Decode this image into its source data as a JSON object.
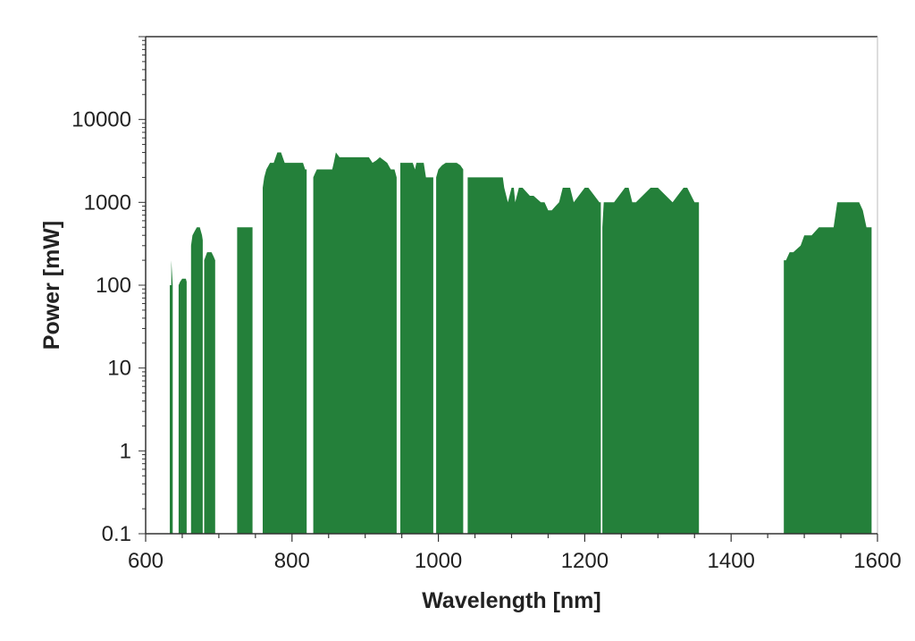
{
  "chart_data": {
    "type": "area",
    "title": "",
    "xlabel": "Wavelength [nm]",
    "ylabel": "Power [mW]",
    "xlim": [
      600,
      1600
    ],
    "ylim": [
      0.1,
      100000
    ],
    "yscale": "log",
    "grid": false,
    "legend": "none",
    "x_ticks": [
      600,
      800,
      1000,
      1200,
      1400,
      1600
    ],
    "x_tick_labels": [
      "600",
      "800",
      "1000",
      "1200",
      "1400",
      "1600"
    ],
    "y_ticks": [
      0.1,
      1,
      10,
      100,
      1000,
      10000
    ],
    "y_tick_labels": [
      "0.1",
      "1",
      "10",
      "100",
      "1000",
      "10000"
    ],
    "color": "#24803a",
    "series": [
      {
        "bands": [
          {
            "x": [
              633,
              635,
              635,
              637,
              637
            ],
            "y": [
              100,
              100,
              200,
              100,
              100
            ]
          },
          {
            "x": [
              645,
              647,
              650,
              655,
              656
            ],
            "y": [
              100,
              110,
              120,
              120,
              110
            ]
          },
          {
            "x": [
              662,
              664,
              667,
              670,
              674,
              677,
              678
            ],
            "y": [
              300,
              400,
              450,
              500,
              500,
              400,
              350
            ]
          },
          {
            "x": [
              680,
              684,
              690,
              693,
              695
            ],
            "y": [
              200,
              250,
              250,
              220,
              200
            ]
          },
          {
            "x": [
              725,
              746
            ],
            "y": [
              500,
              500
            ]
          },
          {
            "x": [
              760,
              762,
              765,
              770,
              775,
              780,
              785,
              790,
              815,
              818,
              820
            ],
            "y": [
              1500,
              2000,
              2500,
              3000,
              3000,
              4000,
              4000,
              3000,
              3000,
              2500,
              2500
            ]
          },
          {
            "x": [
              829,
              831,
              834,
              855,
              857,
              860,
              865,
              870,
              905,
              910,
              915,
              920,
              930,
              935,
              940,
              943
            ],
            "y": [
              2000,
              2200,
              2500,
              2500,
              3000,
              4000,
              3500,
              3500,
              3500,
              3000,
              3200,
              3500,
              3000,
              2500,
              2500,
              2000
            ]
          },
          {
            "x": [
              948,
              950,
              965,
              968,
              970,
              980,
              983,
              990,
              993
            ],
            "y": [
              3000,
              3000,
              3000,
              2500,
              3000,
              3000,
              2000,
              2000,
              2000
            ]
          },
          {
            "x": [
              997,
              1000,
              1005,
              1010,
              1025,
              1030,
              1034
            ],
            "y": [
              2000,
              2500,
              2800,
              3000,
              3000,
              2800,
              2500
            ]
          },
          {
            "x": [
              1040,
              1042,
              1088,
              1090,
              1095,
              1100,
              1103,
              1105,
              1110,
              1115,
              1125,
              1130,
              1140,
              1145,
              1150,
              1155,
              1160,
              1165,
              1170,
              1180,
              1185,
              1200,
              1205,
              1220,
              1222
            ],
            "y": [
              2000,
              2000,
              2000,
              1500,
              1000,
              1500,
              1500,
              1000,
              1500,
              1500,
              1200,
              1200,
              1000,
              1000,
              800,
              800,
              900,
              1000,
              1500,
              1500,
              1000,
              1500,
              1500,
              1000,
              1000
            ]
          },
          {
            "x": [
              1224,
              1226,
              1230,
              1240,
              1255,
              1260,
              1265,
              1270,
              1290,
              1295,
              1300,
              1320,
              1335,
              1340,
              1350,
              1355,
              1356
            ],
            "y": [
              500,
              1000,
              1000,
              1000,
              1500,
              1500,
              1000,
              1000,
              1500,
              1500,
              1500,
              1000,
              1500,
              1500,
              1000,
              1000,
              1000
            ]
          },
          {
            "x": [
              1472,
              1475,
              1480,
              1485,
              1495,
              1500,
              1510,
              1520,
              1525,
              1540,
              1545,
              1550,
              1575,
              1580,
              1585,
              1590,
              1592
            ],
            "y": [
              200,
              200,
              250,
              250,
              300,
              400,
              400,
              500,
              500,
              500,
              1000,
              1000,
              1000,
              800,
              500,
              500,
              500
            ]
          }
        ]
      }
    ]
  }
}
